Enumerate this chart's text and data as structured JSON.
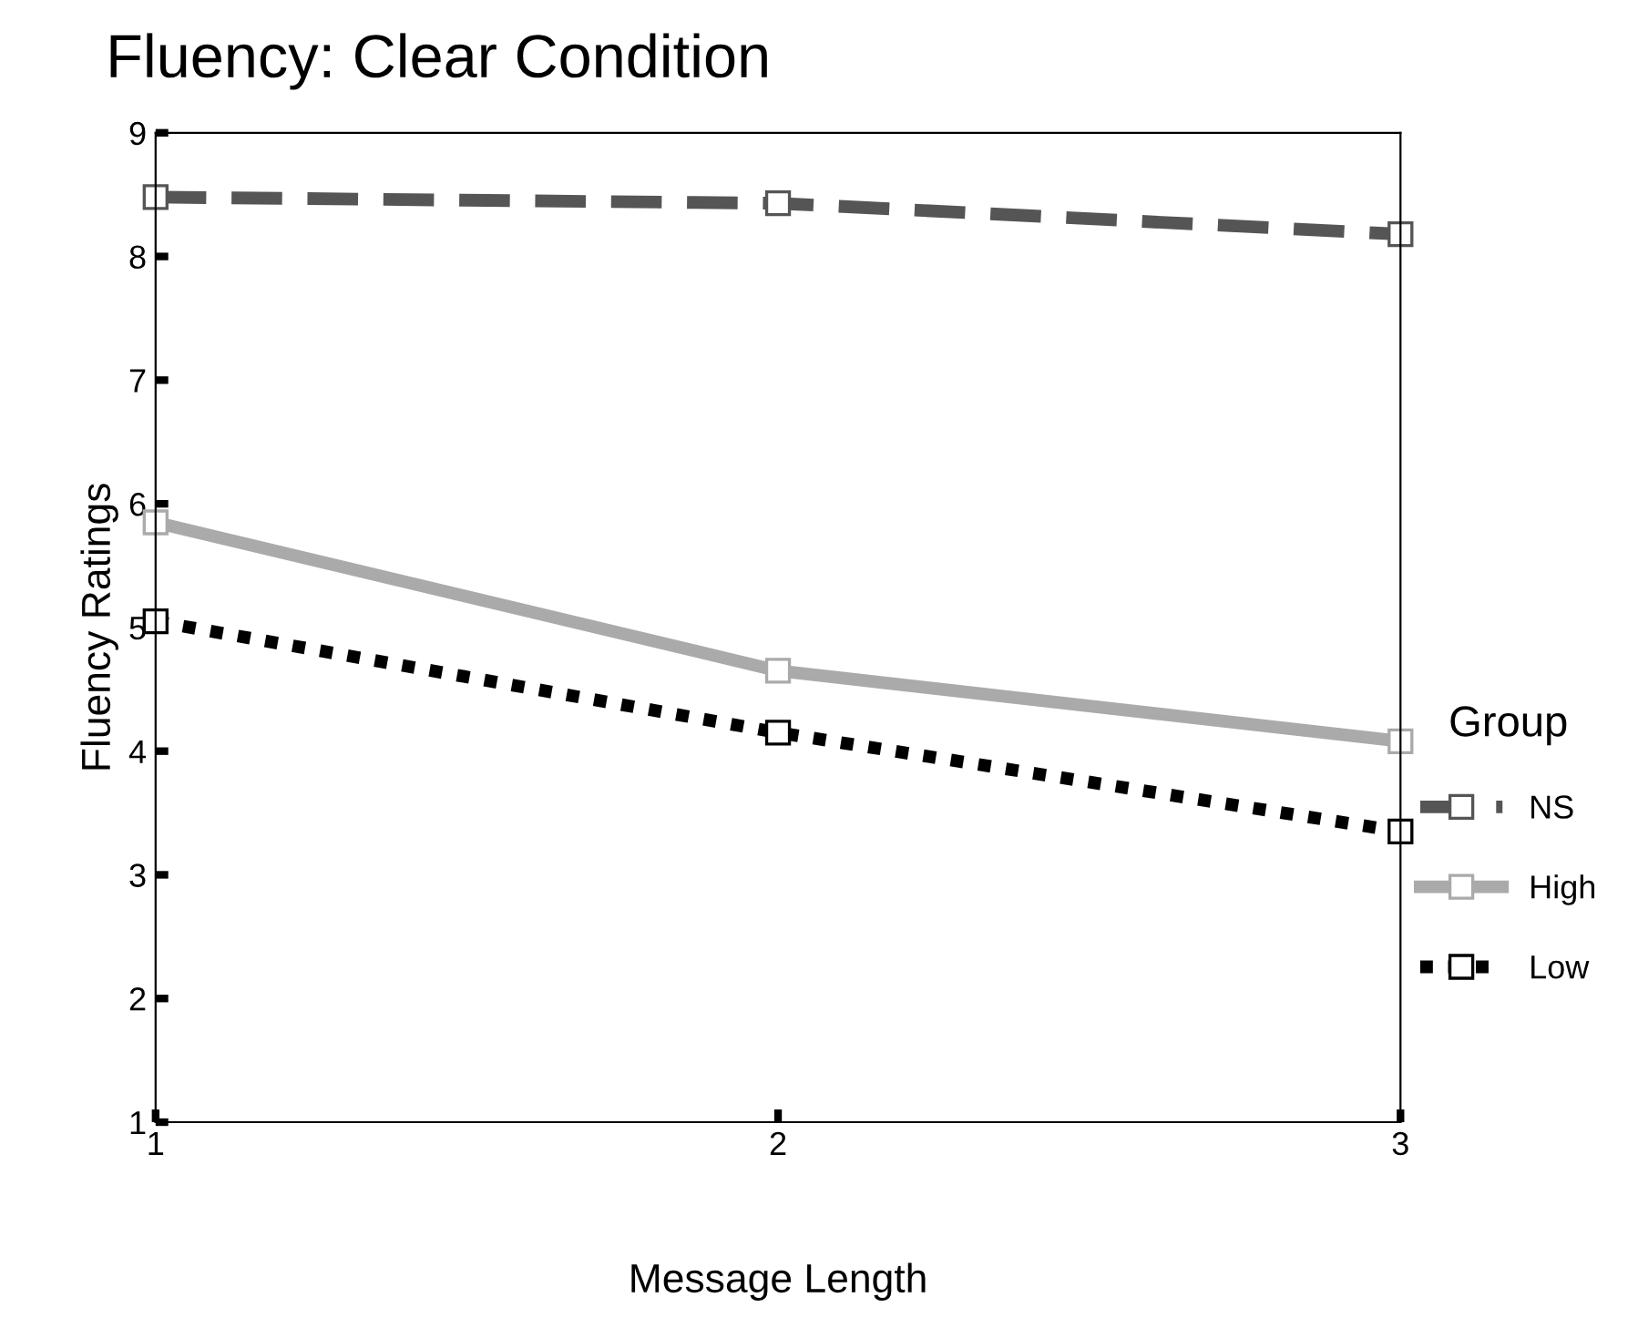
{
  "chart_data": {
    "type": "line",
    "title": "Fluency: Clear Condition",
    "xlabel": "Message Length",
    "ylabel": "Fluency Ratings",
    "legend_title": "Group",
    "x": [
      1,
      2,
      3
    ],
    "xlim": [
      1,
      3
    ],
    "xticks": [
      1,
      2,
      3
    ],
    "ylim": [
      1,
      9
    ],
    "yticks": [
      1,
      2,
      3,
      4,
      5,
      6,
      7,
      8,
      9
    ],
    "series": [
      {
        "name": "NS",
        "color": "#555555",
        "values": [
          8.48,
          8.43,
          8.18
        ],
        "line_style": "dashed"
      },
      {
        "name": "High",
        "color": "#aaaaaa",
        "values": [
          5.85,
          4.65,
          4.08
        ],
        "line_style": "solid"
      },
      {
        "name": "Low",
        "color": "#000000",
        "values": [
          5.05,
          4.15,
          3.35
        ],
        "line_style": "dotted"
      }
    ],
    "marker": "square",
    "grid": false,
    "legend": "right"
  }
}
